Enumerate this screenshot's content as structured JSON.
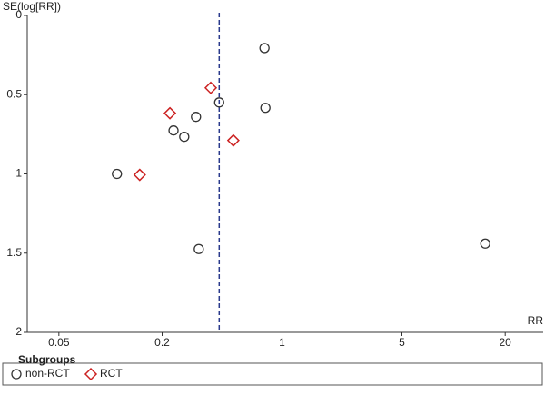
{
  "chart_data": {
    "type": "scatter",
    "y_label": "SE(log[RR])",
    "x_label": "RR",
    "xlog": true,
    "yreversed": true,
    "xlim": [
      0.0327,
      33.3
    ],
    "ylim": [
      0,
      2
    ],
    "xticks": [
      0.05,
      0.2,
      1,
      5,
      20
    ],
    "yticks": [
      0,
      0.5,
      1,
      1.5,
      2
    ],
    "reference_line": 0.43,
    "legend_title": "Subgroups",
    "series": [
      {
        "name": "non-RCT",
        "color": "#333333",
        "marker": "circle",
        "x": [
          0.79,
          0.43,
          0.8,
          0.315,
          0.233,
          0.269,
          0.109,
          0.327,
          15.3
        ],
        "values": [
          0.206,
          0.549,
          0.583,
          0.64,
          0.726,
          0.766,
          1.0,
          1.474,
          1.44
        ]
      },
      {
        "name": "RCT",
        "color": "#cc2222",
        "marker": "diamond",
        "x": [
          0.384,
          0.222,
          0.52,
          0.148
        ],
        "values": [
          0.457,
          0.617,
          0.789,
          1.006
        ]
      }
    ]
  }
}
